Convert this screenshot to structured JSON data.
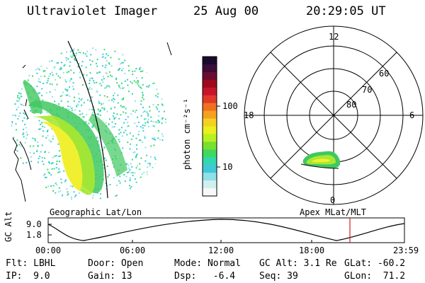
{
  "header": {
    "title": "Ultraviolet Imager",
    "date": "25 Aug 00",
    "time": "20:29:05 UT"
  },
  "colorbar": {
    "unit_label": "photon cm⁻²s⁻¹",
    "ticks": [
      "100",
      "10"
    ],
    "colors": [
      "#1a0a2e",
      "#3a0d3a",
      "#6b0d2e",
      "#9c0a1e",
      "#c8142a",
      "#e0392a",
      "#f07020",
      "#f5a020",
      "#f5d020",
      "#e8f020",
      "#b8f020",
      "#78e030",
      "#40d860",
      "#30d8b0",
      "#40c8d8",
      "#90e0e8",
      "#d0f0f0",
      "#f8f8f8"
    ]
  },
  "left_panel": {
    "caption": "Geographic Lat/Lon"
  },
  "right_panel": {
    "caption": "Apex MLat/MLT",
    "mlt_labels": {
      "top": "12",
      "left": "18",
      "right": "6",
      "bottom": "0"
    },
    "lat_labels": [
      "60",
      "70",
      "80"
    ]
  },
  "timeline": {
    "ylabel": "GC Alt",
    "yticks": [
      "9.0",
      "1.8"
    ],
    "xticks": [
      "00:00",
      "06:00",
      "12:00",
      "18:00",
      "23:59"
    ],
    "cursor_color": "#d02020"
  },
  "info": {
    "flt": "Flt: LBHL",
    "ip": "IP:  9.0",
    "door": "Door: Open",
    "gain": "Gain: 13",
    "mode": "Mode: Normal",
    "dsp": "Dsp:   -6.4",
    "gcalt": "GC Alt: 3.1 Re",
    "seq": "Seq: 39",
    "glat": "GLat: -60.2",
    "glon": "GLon:  71.2"
  }
}
